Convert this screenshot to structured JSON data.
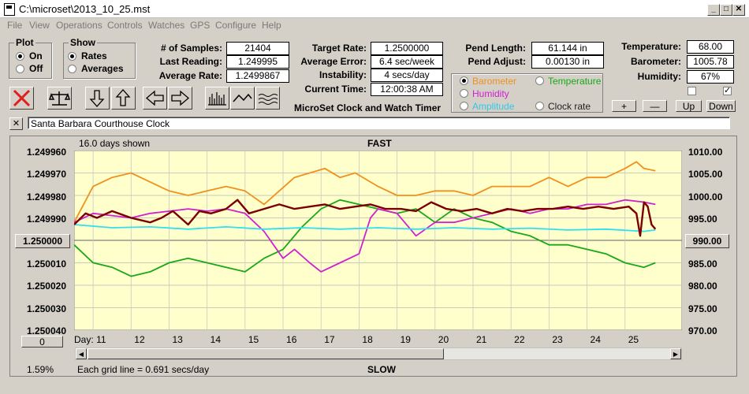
{
  "window": {
    "title": "C:\\microset\\2013_10_25.mst"
  },
  "menu": [
    "File",
    "View",
    "Operations",
    "Controls",
    "Watches",
    "GPS",
    "Configure",
    "Help"
  ],
  "plot_group": {
    "title": "Plot",
    "on": "On",
    "off": "Off",
    "selected": "On"
  },
  "show_group": {
    "title": "Show",
    "rates": "Rates",
    "averages": "Averages",
    "selected": "Rates"
  },
  "stats": {
    "samples_label": "# of Samples:",
    "samples": "21404",
    "last_label": "Last Reading:",
    "last": "1.249995",
    "avg_rate_label": "Average Rate:",
    "avg_rate": "1.2499867",
    "target_label": "Target Rate:",
    "target": "1.2500000",
    "avg_error_label": "Average Error:",
    "avg_error": "6.4 sec/week",
    "instability_label": "Instability:",
    "instability": "4 secs/day",
    "time_label": "Current Time:",
    "time": "12:00:38 AM",
    "pend_length_label": "Pend Length:",
    "pend_length": "61.144 in",
    "pend_adjust_label": "Pend Adjust:",
    "pend_adjust": "0.00130 in",
    "temperature_label": "Temperature:",
    "temperature": "68.00",
    "barometer_label": "Barometer:",
    "barometer": "1005.78",
    "humidity_label": "Humidity:",
    "humidity": "67%"
  },
  "app_subtitle": "MicroSet Clock and Watch Timer",
  "aux_options": {
    "barometer": "Barometer",
    "temperature": "Temperature",
    "humidity": "Humidity",
    "amplitude": "Amplitude",
    "clock_rate": "Clock rate",
    "selected": "Barometer"
  },
  "aux_buttons": {
    "plus": "+",
    "minus": "—",
    "up": "Up",
    "down": "Down"
  },
  "clock_name": "Santa Barbara Courthouse Clock",
  "close_x": "✕",
  "chart_labels": {
    "days_shown": "16.0 days shown",
    "fast": "FAST",
    "slow": "SLOW",
    "grid_note": "Each grid line = 0.691 secs/day",
    "percent": "1.59%",
    "center_value": "1.250000",
    "right_center": "990.00",
    "offset": "0",
    "day_label": "Day:"
  },
  "colors": {
    "plot_bg": "#ffffcc",
    "rate": "#7a0000",
    "barometer": "#f0901e",
    "temperature": "#18a818",
    "humidity": "#d020d0",
    "amplitude": "#30e0f0",
    "hint": "#404040"
  },
  "chart_data": {
    "type": "line",
    "x_label": "Day:",
    "x_ticks": [
      11,
      12,
      13,
      14,
      15,
      16,
      17,
      18,
      19,
      20,
      21,
      22,
      23,
      24,
      25
    ],
    "xlim": [
      10.0,
      26.0
    ],
    "y_left_ticks": [
      "1.249960",
      "1.249970",
      "1.249980",
      "1.249990",
      "1.250000",
      "1.250010",
      "1.250020",
      "1.250030",
      "1.250040"
    ],
    "y_left_range": [
      1.24996,
      1.25004
    ],
    "y_right_ticks": [
      "1010.00",
      "1005.00",
      "1000.00",
      "995.00",
      "990.00",
      "985.00",
      "980.00",
      "975.00",
      "970.00"
    ],
    "y_right_range": [
      970.0,
      1010.0
    ],
    "series": [
      {
        "name": "Barometer",
        "axis": "right",
        "color": "#f0901e",
        "points": [
          [
            10.0,
            994
          ],
          [
            10.5,
            1002
          ],
          [
            11.0,
            1004
          ],
          [
            11.5,
            1005
          ],
          [
            12.0,
            1003
          ],
          [
            12.5,
            1001
          ],
          [
            13.0,
            1000
          ],
          [
            13.5,
            1001
          ],
          [
            14.0,
            1002
          ],
          [
            14.5,
            1001
          ],
          [
            15.0,
            998
          ],
          [
            15.4,
            1001
          ],
          [
            15.8,
            1004
          ],
          [
            16.2,
            1005
          ],
          [
            16.6,
            1006
          ],
          [
            17.0,
            1004
          ],
          [
            17.4,
            1005
          ],
          [
            18.0,
            1002
          ],
          [
            18.5,
            1000
          ],
          [
            19.0,
            1000
          ],
          [
            19.5,
            1001
          ],
          [
            20.0,
            1001
          ],
          [
            20.5,
            1000
          ],
          [
            21.0,
            1002
          ],
          [
            21.5,
            1002
          ],
          [
            22.0,
            1002
          ],
          [
            22.5,
            1004
          ],
          [
            23.0,
            1002
          ],
          [
            23.5,
            1004
          ],
          [
            24.0,
            1004
          ],
          [
            24.5,
            1006
          ],
          [
            24.8,
            1007.5
          ],
          [
            25.0,
            1006
          ],
          [
            25.3,
            1005.5
          ]
        ]
      },
      {
        "name": "Temperature",
        "axis": "right",
        "color": "#18a818",
        "points": [
          [
            10.0,
            989
          ],
          [
            10.5,
            985
          ],
          [
            11.0,
            984
          ],
          [
            11.5,
            982
          ],
          [
            12.0,
            983
          ],
          [
            12.5,
            985
          ],
          [
            13.0,
            986
          ],
          [
            13.5,
            985
          ],
          [
            14.0,
            984
          ],
          [
            14.5,
            983
          ],
          [
            15.0,
            986
          ],
          [
            15.5,
            988
          ],
          [
            16.0,
            993
          ],
          [
            16.5,
            997
          ],
          [
            17.0,
            999
          ],
          [
            17.5,
            998
          ],
          [
            18.0,
            997
          ],
          [
            18.5,
            996
          ],
          [
            19.0,
            997
          ],
          [
            19.5,
            994
          ],
          [
            20.0,
            997
          ],
          [
            20.5,
            995
          ],
          [
            21.0,
            994
          ],
          [
            21.5,
            992
          ],
          [
            22.0,
            991
          ],
          [
            22.5,
            989
          ],
          [
            23.0,
            989
          ],
          [
            23.5,
            988
          ],
          [
            24.0,
            987
          ],
          [
            24.5,
            985
          ],
          [
            25.0,
            984
          ],
          [
            25.3,
            985
          ]
        ]
      },
      {
        "name": "Humidity",
        "axis": "right",
        "color": "#d020d0",
        "points": [
          [
            10.0,
            994
          ],
          [
            10.5,
            996
          ],
          [
            11.0,
            995.5
          ],
          [
            11.5,
            995
          ],
          [
            12.0,
            996
          ],
          [
            12.5,
            996.5
          ],
          [
            13.0,
            997
          ],
          [
            13.5,
            996.5
          ],
          [
            14.0,
            997
          ],
          [
            14.5,
            996
          ],
          [
            15.0,
            992
          ],
          [
            15.5,
            986
          ],
          [
            15.8,
            988
          ],
          [
            16.2,
            985
          ],
          [
            16.5,
            983
          ],
          [
            17.0,
            985
          ],
          [
            17.5,
            987
          ],
          [
            17.8,
            995
          ],
          [
            18.0,
            997
          ],
          [
            18.5,
            996
          ],
          [
            19.0,
            991
          ],
          [
            19.5,
            994
          ],
          [
            20.0,
            994
          ],
          [
            20.5,
            995
          ],
          [
            21.0,
            996
          ],
          [
            21.5,
            997
          ],
          [
            22.0,
            996
          ],
          [
            22.5,
            997
          ],
          [
            23.0,
            997
          ],
          [
            23.5,
            998
          ],
          [
            24.0,
            998
          ],
          [
            24.5,
            999
          ],
          [
            25.0,
            998.5
          ],
          [
            25.3,
            998
          ]
        ]
      },
      {
        "name": "Amplitude",
        "axis": "right",
        "color": "#30e0f0",
        "points": [
          [
            10.0,
            993.5
          ],
          [
            11.0,
            992.8
          ],
          [
            12.0,
            993
          ],
          [
            13.0,
            992.5
          ],
          [
            14.0,
            993
          ],
          [
            15.0,
            992.5
          ],
          [
            16.0,
            992.8
          ],
          [
            17.0,
            992.5
          ],
          [
            18.0,
            992.8
          ],
          [
            19.0,
            992.5
          ],
          [
            20.0,
            992.8
          ],
          [
            21.0,
            992.5
          ],
          [
            22.0,
            992.7
          ],
          [
            23.0,
            992.3
          ],
          [
            24.0,
            992.5
          ],
          [
            25.0,
            992
          ],
          [
            25.3,
            992.3
          ]
        ]
      },
      {
        "name": "Clock rate",
        "axis": "left",
        "color": "#7a0000",
        "points": [
          [
            10.0,
            1.249993
          ],
          [
            10.3,
            1.249988
          ],
          [
            10.6,
            1.24999
          ],
          [
            11.0,
            1.249987
          ],
          [
            11.5,
            1.24999
          ],
          [
            12.0,
            1.249992
          ],
          [
            12.3,
            1.24999
          ],
          [
            12.6,
            1.249987
          ],
          [
            13.0,
            1.249993
          ],
          [
            13.3,
            1.249987
          ],
          [
            13.6,
            1.249988
          ],
          [
            14.0,
            1.249986
          ],
          [
            14.3,
            1.249982
          ],
          [
            14.6,
            1.249988
          ],
          [
            15.0,
            1.249986
          ],
          [
            15.4,
            1.249984
          ],
          [
            15.8,
            1.249986
          ],
          [
            16.2,
            1.249985
          ],
          [
            16.6,
            1.249984
          ],
          [
            17.0,
            1.249986
          ],
          [
            17.4,
            1.249985
          ],
          [
            17.8,
            1.249984
          ],
          [
            18.2,
            1.249986
          ],
          [
            18.6,
            1.249986
          ],
          [
            19.0,
            1.249987
          ],
          [
            19.4,
            1.249983
          ],
          [
            19.8,
            1.249986
          ],
          [
            20.2,
            1.249987
          ],
          [
            20.6,
            1.249986
          ],
          [
            21.0,
            1.249988
          ],
          [
            21.4,
            1.249986
          ],
          [
            21.8,
            1.249987
          ],
          [
            22.2,
            1.249986
          ],
          [
            22.6,
            1.249986
          ],
          [
            23.0,
            1.249985
          ],
          [
            23.4,
            1.249986
          ],
          [
            23.8,
            1.249985
          ],
          [
            24.2,
            1.249986
          ],
          [
            24.6,
            1.249985
          ],
          [
            24.8,
            1.249988
          ],
          [
            24.9,
            1.249998
          ],
          [
            25.0,
            1.249983
          ],
          [
            25.1,
            1.249985
          ],
          [
            25.2,
            1.249993
          ],
          [
            25.3,
            1.249995
          ]
        ]
      }
    ]
  }
}
